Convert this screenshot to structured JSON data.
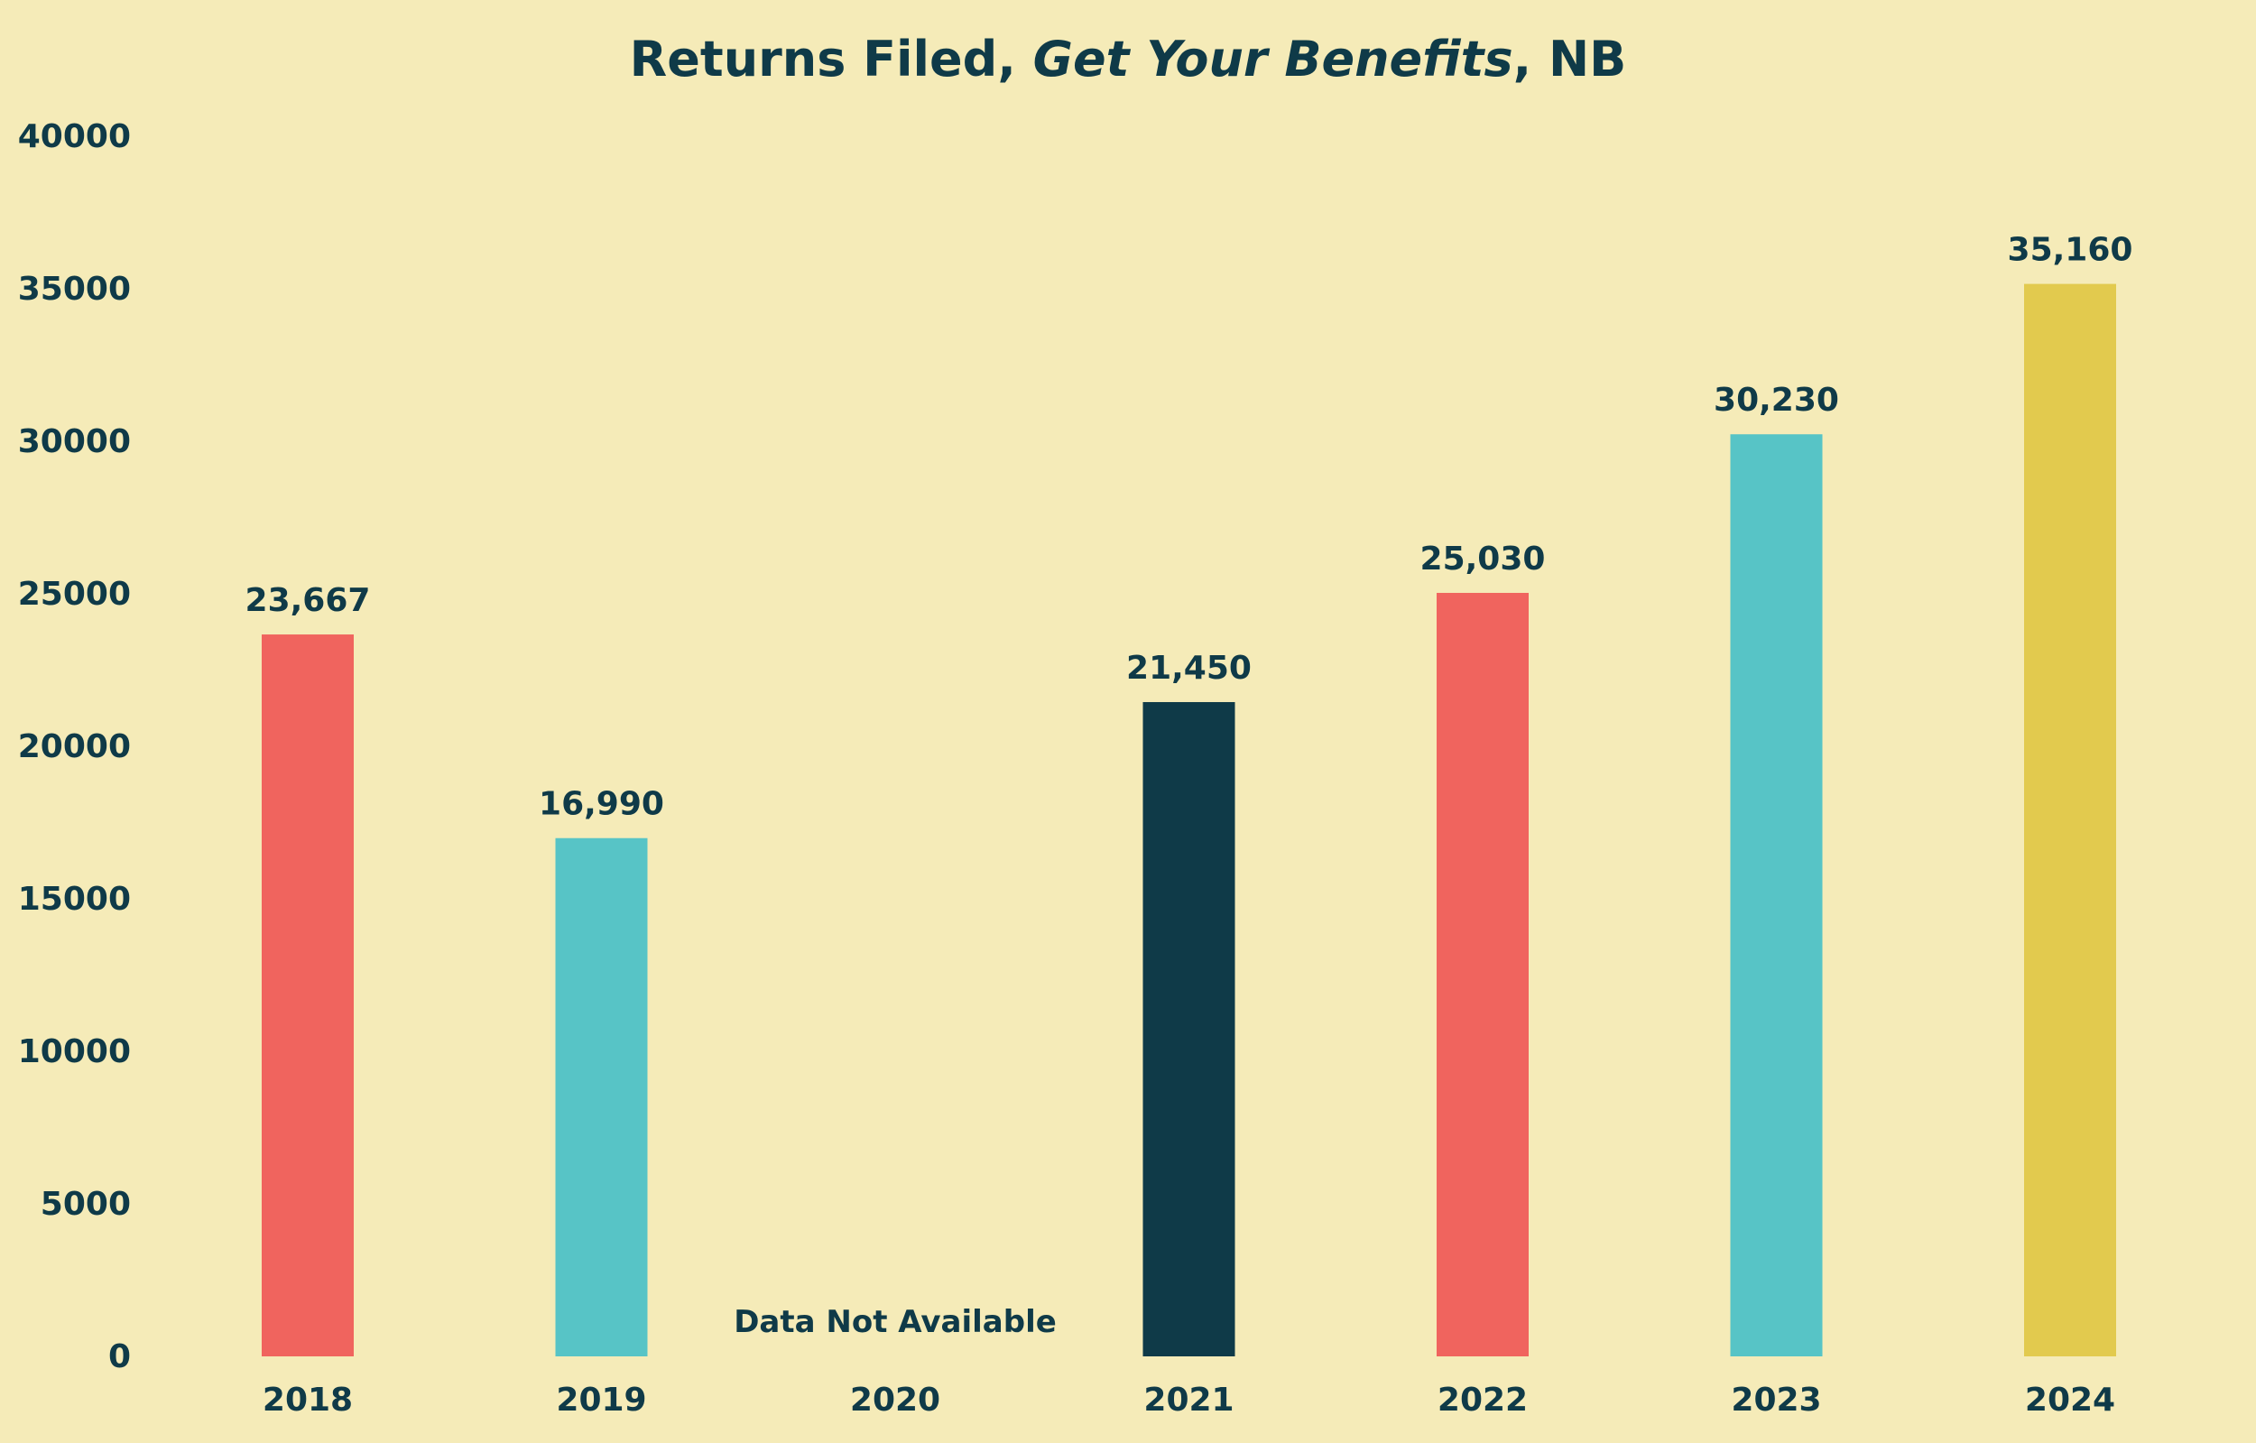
{
  "chart_data": {
    "type": "bar",
    "title": {
      "part1": "Returns Filed, ",
      "part2": "Get Your Benefits",
      "part3": ", NB"
    },
    "categories": [
      "2018",
      "2019",
      "2020",
      "2021",
      "2022",
      "2023",
      "2024"
    ],
    "values": [
      23667,
      16990,
      null,
      21450,
      25030,
      30230,
      35160
    ],
    "value_labels": [
      "23,667",
      "16,990",
      "",
      "21,450",
      "25,030",
      "30,230",
      "35,160"
    ],
    "bar_colors": [
      "#f0645e",
      "#57c4c6",
      "",
      "#0f3a48",
      "#f0645e",
      "#57c4c6",
      "#e2ca4e"
    ],
    "missing_note": "Data Not Available",
    "missing_index": 2,
    "ylim": [
      0,
      40000
    ],
    "y_ticks": [
      0,
      5000,
      10000,
      15000,
      20000,
      25000,
      30000,
      35000,
      40000
    ],
    "xlabel": "",
    "ylabel": "",
    "grid": false,
    "legend": "none"
  },
  "colors": {
    "background": "#f5ebb8",
    "text": "#0f3a48"
  }
}
